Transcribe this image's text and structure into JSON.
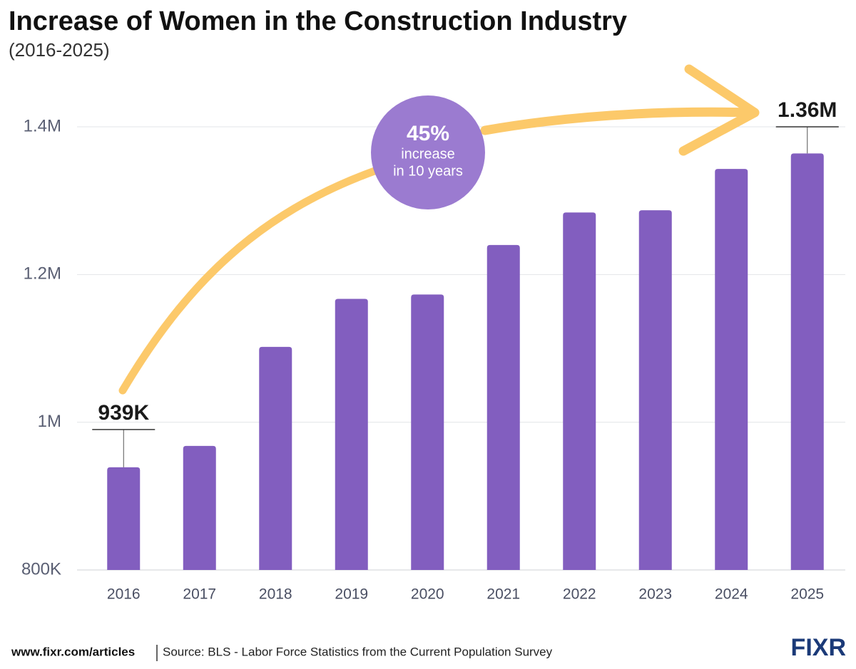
{
  "chart_data": {
    "type": "bar",
    "title": "Increase of Women in the Construction Industry",
    "subtitle": "(2016-2025)",
    "categories": [
      "2016",
      "2017",
      "2018",
      "2019",
      "2020",
      "2021",
      "2022",
      "2023",
      "2024",
      "2025"
    ],
    "values": [
      939000,
      968000,
      1102000,
      1167000,
      1173000,
      1240000,
      1284000,
      1287000,
      1343000,
      1364000
    ],
    "value_labels": [
      "939K",
      null,
      null,
      null,
      null,
      null,
      null,
      null,
      null,
      "1.36M"
    ],
    "color": "#825ebf",
    "ylim": [
      800000,
      1400000
    ],
    "yticks": [
      {
        "value": 800000,
        "label": "800K"
      },
      {
        "value": 1000000,
        "label": "1M"
      },
      {
        "value": 1200000,
        "label": "1.2M"
      },
      {
        "value": 1400000,
        "label": "1.4M"
      }
    ],
    "grid": true,
    "annotation": {
      "value": "45%",
      "line1": "increase",
      "line2": "in 10 years"
    },
    "footer": {
      "url": "www.fixr.com/articles",
      "source": "Source: BLS - Labor Force Statistics from the Current Population Survey",
      "logo": "FIXR"
    }
  }
}
